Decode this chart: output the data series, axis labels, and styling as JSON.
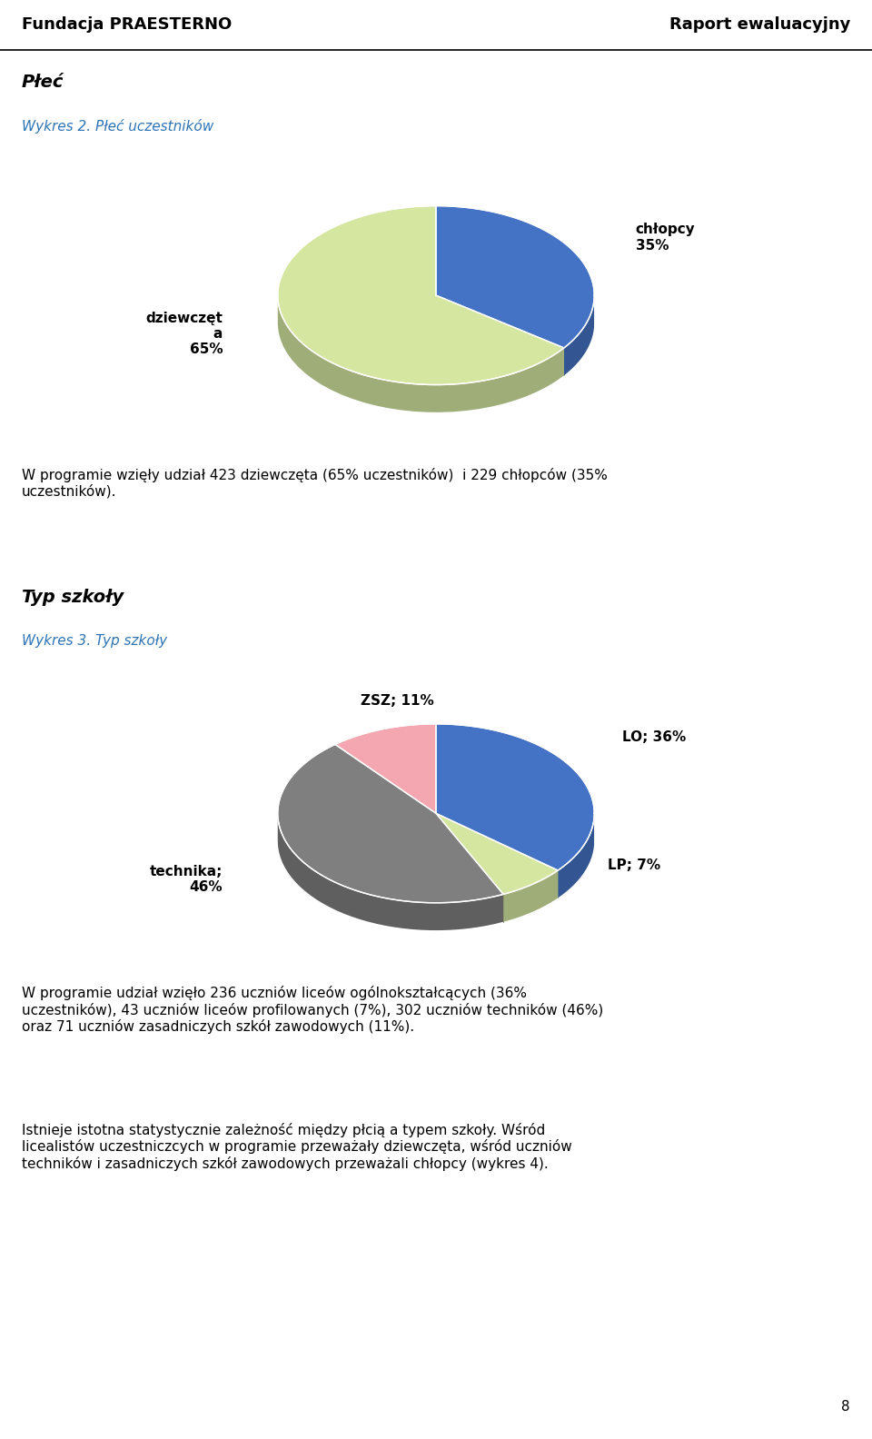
{
  "header_left": "Fundacja PRAESTERNO",
  "header_right": "Raport ewaluacyjny",
  "section1_title": "Płeć",
  "chart1_title": "Wykres 2. Płeć uczestników",
  "chart1_sizes": [
    35,
    65
  ],
  "chart1_colors": [
    "#4472C4",
    "#D4E6A0"
  ],
  "chart1_edge_colors": [
    "#3A65B0",
    "#BDD48A"
  ],
  "chart1_label_right": "chłopcy\n35%",
  "chart1_label_left": "dziewczęt\na\n65%",
  "chart1_text": "W programie wzięły udział 423 dziewczęta (65% uczestników)  i 229 chłopców (35%\nuczestników).",
  "section2_title": "Typ szkoły",
  "chart2_title": "Wykres 3. Typ szkoły",
  "chart2_sizes": [
    36,
    7,
    46,
    11
  ],
  "chart2_colors": [
    "#4472C4",
    "#D4E6A0",
    "#7F7F7F",
    "#F4A7B0"
  ],
  "chart2_edge_colors": [
    "#3A65B0",
    "#BDD48A",
    "#666666",
    "#E08090"
  ],
  "chart2_labels": [
    "LO; 36%",
    "LP; 7%",
    "technika;\n46%",
    "ZSZ; 11%"
  ],
  "chart2_text": "W programie udział wzięło 236 uczniów liceów ogólnokształcących (36%\nuczestników), 43 uczniów liceów profilowanych (7%), 302 uczniów techników (46%)\noraz 71 uczniów zasadniczych szkół zawodowych (11%).",
  "footer_text": "Istnieje istotna statystycznie zależność między płcią a typem szkoły. Wśród\nlicealistów uczestniczcych w programie przeważały dziewczęta, wśród uczniów\ntechników i zasadniczych szkół zawodowych przeważali chłopcy (wykres 4).",
  "page_number": "8",
  "label_color": "#2E74B5",
  "depth_factor": 0.35,
  "shadow_color": "#A0A0A0"
}
